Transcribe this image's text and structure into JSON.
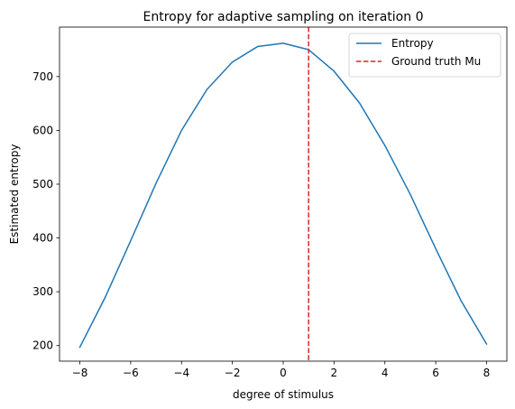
{
  "chart_data": {
    "type": "line",
    "title": "Entropy for adaptive sampling on iteration 0",
    "xlabel": "degree of stimulus",
    "ylabel": "Estimated entropy",
    "xlim": [
      -8.8,
      8.8
    ],
    "ylim": [
      171,
      792
    ],
    "xticks": [
      -8,
      -6,
      -4,
      -2,
      0,
      2,
      4,
      6,
      8
    ],
    "xtick_labels": [
      "−8",
      "−6",
      "−4",
      "−2",
      "0",
      "2",
      "4",
      "6",
      "8"
    ],
    "yticks": [
      200,
      300,
      400,
      500,
      600,
      700
    ],
    "ytick_labels": [
      "200",
      "300",
      "400",
      "500",
      "600",
      "700"
    ],
    "grid": false,
    "legend_position": "upper right",
    "series": [
      {
        "name": "Entropy",
        "color": "#1f77b4",
        "style": "solid",
        "x": [
          -8,
          -7,
          -6,
          -5,
          -4,
          -3,
          -2,
          -1,
          0,
          1,
          2,
          3,
          4,
          5,
          6,
          7,
          8
        ],
        "y": [
          197,
          290,
          395,
          502,
          600,
          676,
          727,
          756,
          762,
          750,
          710,
          651,
          572,
          481,
          380,
          283,
          203
        ]
      }
    ],
    "vlines": [
      {
        "name": "Ground truth Mu",
        "x": 1,
        "color": "#d62728",
        "style": "dashed"
      }
    ]
  }
}
